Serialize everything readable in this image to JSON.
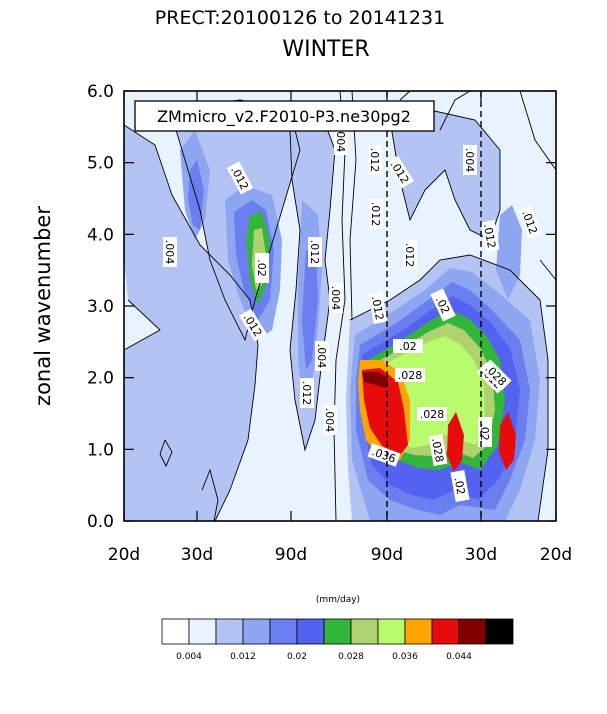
{
  "chart_data": {
    "type": "contour",
    "title": "PRECT:20100126 to 20141231",
    "subtitle": "WINTER",
    "ylabel": "zonal wavenumber",
    "case_label": "ZMmicro_v2.F2010-P3.ne30pg2",
    "units": "(mm/day)",
    "ylim": [
      0,
      6
    ],
    "yticks": [
      "0.0",
      "1.0",
      "2.0",
      "3.0",
      "4.0",
      "5.0",
      "6.0"
    ],
    "xticks": [
      "20d",
      "30d",
      "90d",
      "90d",
      "30d",
      "20d"
    ],
    "dashed_lines": [
      "90d",
      "30d"
    ],
    "contour_labels": [
      ".004",
      ".004",
      ".004",
      ".004",
      ".004",
      ".004",
      ".012",
      ".012",
      ".012",
      ".012",
      ".012",
      ".012",
      ".012",
      ".012",
      ".012",
      ".012",
      ".012",
      ".012",
      ".02",
      ".02",
      ".02",
      ".02",
      ".02",
      ".028",
      ".028",
      ".028",
      ".028",
      ".036"
    ],
    "colorbar": {
      "colors": [
        "#ffffff",
        "#e9f3fd",
        "#b3c4f4",
        "#8ea6f2",
        "#6b7ef0",
        "#5462f0",
        "#33b43a",
        "#aed36e",
        "#b8fb6c",
        "#ffa500",
        "#e60c0c",
        "#800000",
        "#000000"
      ],
      "labels": [
        "0.004",
        "0.012",
        "0.02",
        "0.028",
        "0.036",
        "0.044"
      ]
    }
  }
}
